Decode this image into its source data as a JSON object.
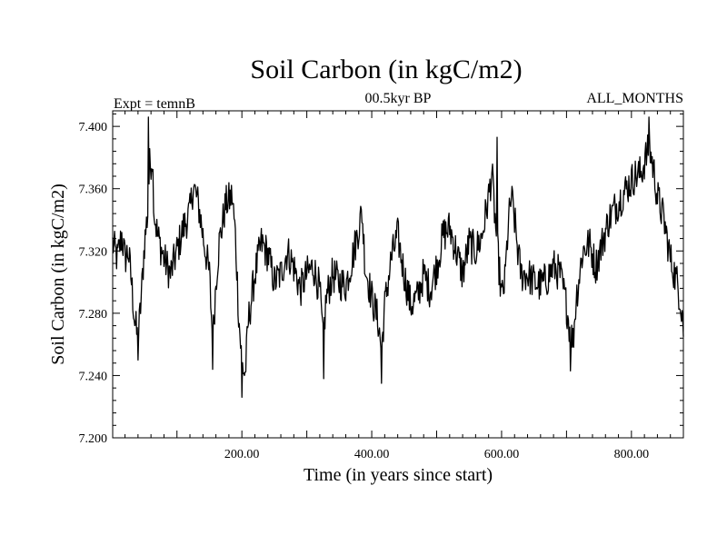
{
  "chart_data": {
    "type": "line",
    "title": "Soil Carbon (in kgC/m2)",
    "subtitle_left": "Expt = temnB",
    "subtitle_center": "00.5kyr BP",
    "subtitle_right": "ALL_MONTHS",
    "xlabel": "Time (in years since start)",
    "ylabel": "Soil Carbon (in kgC/m2)",
    "xlim": [
      1,
      880
    ],
    "ylim": [
      7.2,
      7.41
    ],
    "xticks": [
      200,
      400,
      600,
      800
    ],
    "xtick_labels": [
      "200.00",
      "400.00",
      "600.00",
      "800.00"
    ],
    "yticks": [
      7.2,
      7.24,
      7.28,
      7.32,
      7.36,
      7.4
    ],
    "ytick_labels": [
      "7.200",
      "7.240",
      "7.280",
      "7.320",
      "7.360",
      "7.400"
    ],
    "grid": false,
    "series": [
      {
        "name": "Soil Carbon",
        "color": "#000000",
        "noise": 0.012,
        "anchors": [
          [
            1,
            7.325
          ],
          [
            8,
            7.315
          ],
          [
            15,
            7.33
          ],
          [
            20,
            7.315
          ],
          [
            25,
            7.32
          ],
          [
            30,
            7.3
          ],
          [
            35,
            7.275
          ],
          [
            40,
            7.262
          ],
          [
            45,
            7.29
          ],
          [
            50,
            7.325
          ],
          [
            55,
            7.345
          ],
          [
            58,
            7.375
          ],
          [
            62,
            7.38
          ],
          [
            65,
            7.345
          ],
          [
            70,
            7.33
          ],
          [
            80,
            7.315
          ],
          [
            90,
            7.305
          ],
          [
            100,
            7.32
          ],
          [
            110,
            7.335
          ],
          [
            120,
            7.345
          ],
          [
            125,
            7.362
          ],
          [
            130,
            7.355
          ],
          [
            135,
            7.345
          ],
          [
            140,
            7.33
          ],
          [
            150,
            7.305
          ],
          [
            155,
            7.262
          ],
          [
            160,
            7.3
          ],
          [
            165,
            7.325
          ],
          [
            175,
            7.35
          ],
          [
            185,
            7.355
          ],
          [
            190,
            7.33
          ],
          [
            195,
            7.28
          ],
          [
            200,
            7.248
          ],
          [
            205,
            7.24
          ],
          [
            210,
            7.275
          ],
          [
            220,
            7.305
          ],
          [
            230,
            7.325
          ],
          [
            240,
            7.318
          ],
          [
            250,
            7.3
          ],
          [
            260,
            7.305
          ],
          [
            270,
            7.32
          ],
          [
            280,
            7.31
          ],
          [
            290,
            7.295
          ],
          [
            300,
            7.305
          ],
          [
            310,
            7.31
          ],
          [
            320,
            7.295
          ],
          [
            325,
            7.262
          ],
          [
            330,
            7.29
          ],
          [
            340,
            7.305
          ],
          [
            350,
            7.3
          ],
          [
            360,
            7.298
          ],
          [
            370,
            7.315
          ],
          [
            380,
            7.335
          ],
          [
            385,
            7.345
          ],
          [
            390,
            7.31
          ],
          [
            400,
            7.29
          ],
          [
            410,
            7.275
          ],
          [
            415,
            7.255
          ],
          [
            420,
            7.285
          ],
          [
            430,
            7.315
          ],
          [
            440,
            7.33
          ],
          [
            450,
            7.305
          ],
          [
            460,
            7.285
          ],
          [
            470,
            7.29
          ],
          [
            480,
            7.305
          ],
          [
            490,
            7.295
          ],
          [
            500,
            7.31
          ],
          [
            510,
            7.33
          ],
          [
            520,
            7.335
          ],
          [
            530,
            7.32
          ],
          [
            540,
            7.305
          ],
          [
            550,
            7.325
          ],
          [
            560,
            7.32
          ],
          [
            570,
            7.33
          ],
          [
            580,
            7.355
          ],
          [
            585,
            7.37
          ],
          [
            590,
            7.34
          ],
          [
            600,
            7.29
          ],
          [
            605,
            7.3
          ],
          [
            610,
            7.335
          ],
          [
            615,
            7.355
          ],
          [
            620,
            7.34
          ],
          [
            625,
            7.32
          ],
          [
            630,
            7.305
          ],
          [
            640,
            7.305
          ],
          [
            650,
            7.3
          ],
          [
            660,
            7.298
          ],
          [
            670,
            7.302
          ],
          [
            680,
            7.31
          ],
          [
            690,
            7.305
          ],
          [
            700,
            7.285
          ],
          [
            705,
            7.27
          ],
          [
            710,
            7.262
          ],
          [
            715,
            7.29
          ],
          [
            725,
            7.32
          ],
          [
            735,
            7.325
          ],
          [
            745,
            7.31
          ],
          [
            755,
            7.325
          ],
          [
            765,
            7.34
          ],
          [
            775,
            7.348
          ],
          [
            785,
            7.355
          ],
          [
            795,
            7.362
          ],
          [
            805,
            7.368
          ],
          [
            815,
            7.37
          ],
          [
            822,
            7.38
          ],
          [
            828,
            7.386
          ],
          [
            835,
            7.37
          ],
          [
            840,
            7.355
          ],
          [
            850,
            7.34
          ],
          [
            860,
            7.315
          ],
          [
            870,
            7.3
          ],
          [
            875,
            7.29
          ],
          [
            880,
            7.275
          ]
        ],
        "spikes": [
          [
            56,
            7.406
          ],
          [
            200,
            7.226
          ],
          [
            415,
            7.235
          ],
          [
            593,
            7.393
          ],
          [
            706,
            7.243
          ],
          [
            827,
            7.406
          ],
          [
            155,
            7.244
          ],
          [
            326,
            7.238
          ],
          [
            40,
            7.25
          ],
          [
            880,
            7.265
          ]
        ]
      }
    ]
  }
}
